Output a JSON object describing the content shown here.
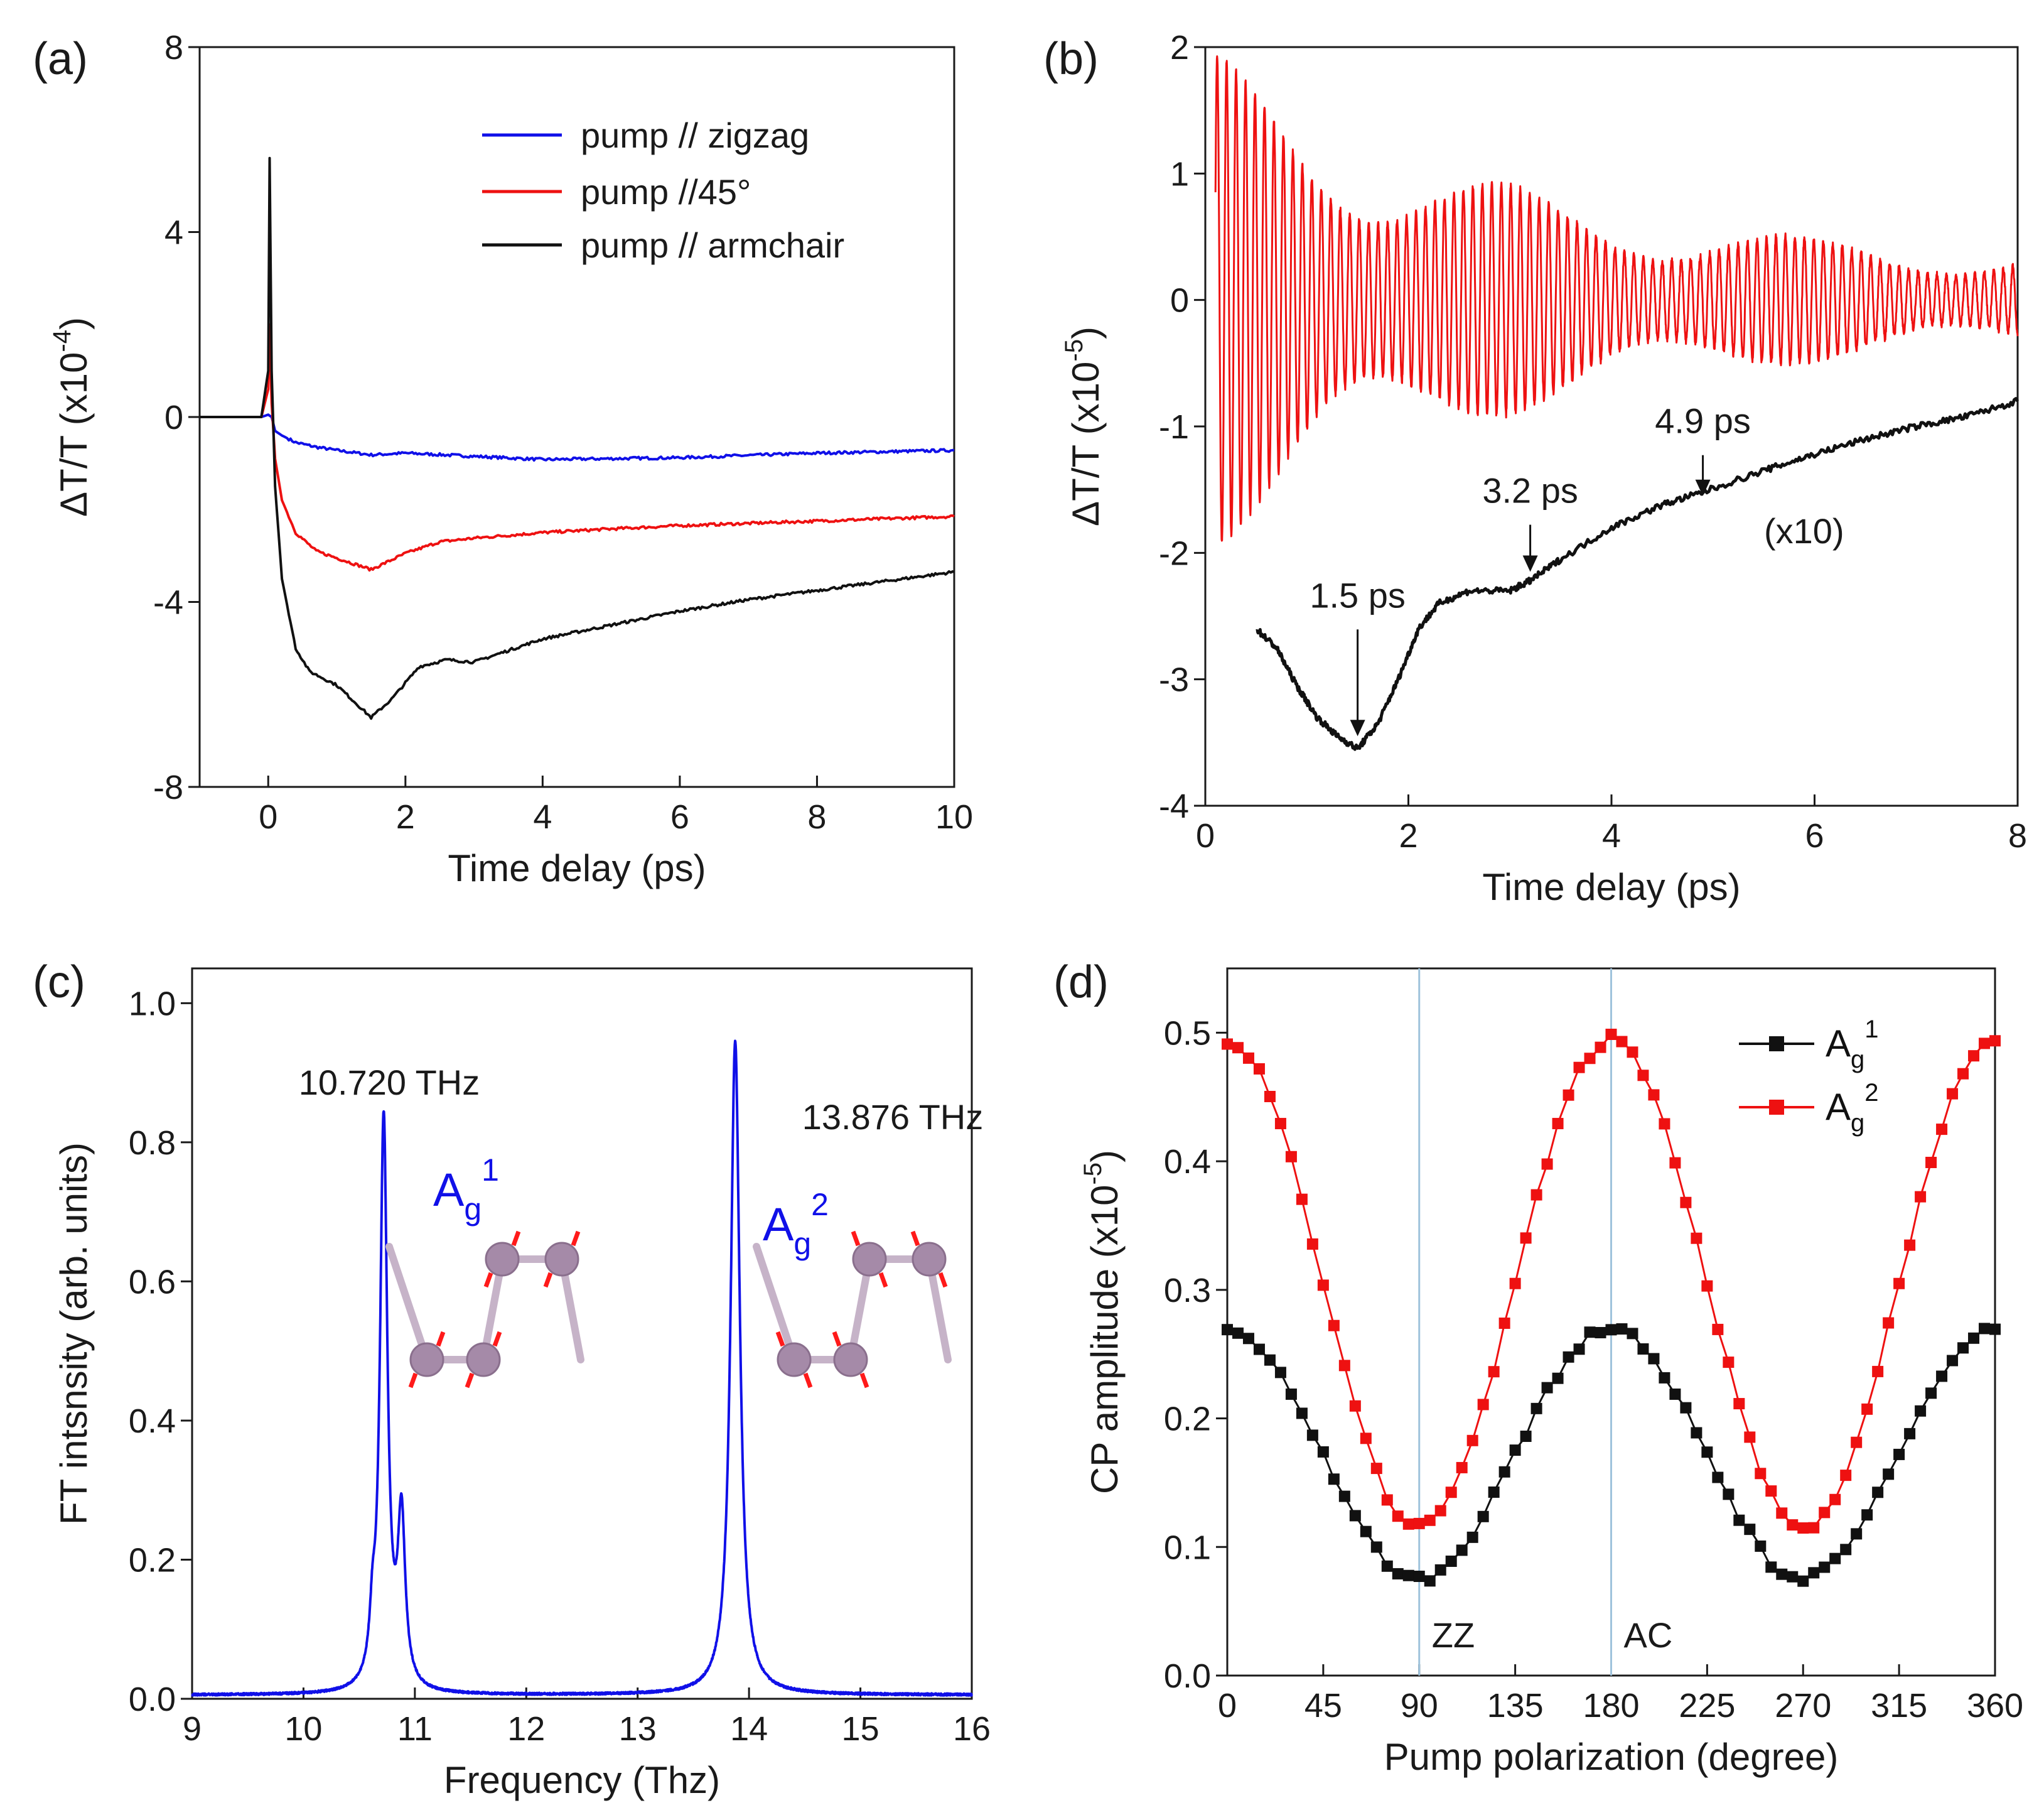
{
  "colors": {
    "blue": "#1010e8",
    "red": "#ee1111",
    "black": "#111111",
    "guide": "#9fc3dc",
    "guide_text": "#3c78c8",
    "molecule": "#a58aa8",
    "arrow": "#ff1a1a"
  },
  "chart_data": [
    {
      "panel": "(a)",
      "type": "line",
      "xlabel": "Time delay (ps)",
      "ylabel": "ΔT/T (x10",
      "ylabel_exp": "-4",
      "ylabel_close": ")",
      "xlim": [
        -1,
        10
      ],
      "ylim": [
        -8,
        8
      ],
      "xticks": [
        0,
        2,
        4,
        6,
        8,
        10
      ],
      "yticks": [
        -8,
        -4,
        0,
        4,
        8
      ],
      "legend_position": "top-right",
      "series": [
        {
          "name": "pump // zigzag",
          "color": "blue",
          "x": [
            -1,
            -0.5,
            -0.1,
            0,
            0.05,
            0.1,
            0.2,
            0.4,
            0.7,
            1,
            1.5,
            2,
            3,
            4,
            5,
            6,
            7,
            8,
            9,
            10
          ],
          "y": [
            0,
            0,
            0,
            0.05,
            0,
            -0.3,
            -0.4,
            -0.55,
            -0.65,
            -0.72,
            -0.82,
            -0.78,
            -0.85,
            -0.92,
            -0.9,
            -0.88,
            -0.83,
            -0.78,
            -0.75,
            -0.72
          ]
        },
        {
          "name": "pump //45°",
          "color": "red",
          "x": [
            -1,
            -0.5,
            -0.1,
            0,
            0.02,
            0.05,
            0.1,
            0.2,
            0.4,
            0.7,
            1,
            1.5,
            2,
            2.5,
            3,
            4,
            5,
            6,
            7,
            8,
            9,
            10
          ],
          "y": [
            0,
            0,
            0,
            0.6,
            2.0,
            0.3,
            -0.9,
            -1.8,
            -2.5,
            -2.9,
            -3.05,
            -3.3,
            -2.95,
            -2.7,
            -2.62,
            -2.5,
            -2.42,
            -2.35,
            -2.3,
            -2.25,
            -2.2,
            -2.15
          ]
        },
        {
          "name": "pump // armchair",
          "color": "black",
          "x": [
            -1,
            -0.5,
            -0.1,
            0,
            0.02,
            0.05,
            0.1,
            0.2,
            0.4,
            0.6,
            1,
            1.5,
            1.8,
            2.2,
            2.6,
            3,
            4,
            5,
            6,
            7,
            8,
            9,
            10
          ],
          "y": [
            0,
            0,
            0,
            1.0,
            5.6,
            1.0,
            -1.5,
            -3.5,
            -5.0,
            -5.5,
            -5.8,
            -6.5,
            -6.1,
            -5.4,
            -5.25,
            -5.3,
            -4.8,
            -4.5,
            -4.2,
            -3.95,
            -3.75,
            -3.55,
            -3.35
          ]
        }
      ]
    },
    {
      "panel": "(b)",
      "type": "line",
      "xlabel": "Time delay (ps)",
      "ylabel": "ΔT/T (x10",
      "ylabel_exp": "-5",
      "ylabel_close": ")",
      "xlim": [
        0,
        8
      ],
      "ylim": [
        -4,
        2
      ],
      "xticks": [
        0,
        2,
        4,
        6,
        8
      ],
      "yticks": [
        -4,
        -3,
        -2,
        -1,
        0,
        1,
        2
      ],
      "oscillation": {
        "color": "red",
        "x_start": 0.1,
        "x_end": 8,
        "frequency_thz": 10.72,
        "amplitude_start": 1.7,
        "amplitude_end": 0.22,
        "decay_ps": 3.0
      },
      "background": {
        "color": "black",
        "x": [
          0.5,
          0.7,
          0.9,
          1.1,
          1.3,
          1.5,
          1.7,
          1.9,
          2.1,
          2.3,
          2.6,
          3.0,
          3.2,
          3.5,
          4.0,
          4.5,
          4.9,
          5.5,
          6.0,
          6.5,
          7.0,
          7.5,
          8.0
        ],
        "y": [
          -2.6,
          -2.75,
          -3.05,
          -3.3,
          -3.45,
          -3.55,
          -3.35,
          -3.0,
          -2.6,
          -2.4,
          -2.3,
          -2.3,
          -2.22,
          -2.05,
          -1.8,
          -1.62,
          -1.52,
          -1.35,
          -1.22,
          -1.1,
          -1.0,
          -0.92,
          -0.8
        ]
      },
      "annotations": [
        {
          "text": "1.5 ps",
          "x": 1.5,
          "y": -3.45
        },
        {
          "text": "3.2 ps",
          "x": 3.2,
          "y": -2.15
        },
        {
          "text": "4.9 ps",
          "x": 4.9,
          "y": -1.55
        }
      ],
      "scale_note": "(x10)"
    },
    {
      "panel": "(c)",
      "type": "line",
      "xlabel": "Frequency (Thz)",
      "ylabel": "FT intsnsity (arb. units)",
      "xlim": [
        9,
        16
      ],
      "ylim": [
        0,
        1.05
      ],
      "xticks": [
        9,
        10,
        11,
        12,
        13,
        14,
        15,
        16
      ],
      "yticks": [
        0.0,
        0.2,
        0.4,
        0.6,
        0.8,
        1.0
      ],
      "series": [
        {
          "name": "FT spectrum",
          "color": "blue",
          "peaks": [
            {
              "center": 10.72,
              "height": 0.82,
              "width": 0.04
            },
            {
              "center": 10.88,
              "height": 0.24,
              "width": 0.04
            },
            {
              "center": 10.62,
              "height": 0.07,
              "width": 0.03
            },
            {
              "center": 13.876,
              "height": 0.94,
              "width": 0.05
            }
          ]
        }
      ],
      "peak_labels": [
        {
          "text": "10.720 THz",
          "mode_base": "A",
          "mode_sub": "g",
          "mode_sup": "1"
        },
        {
          "text": "13.876 THz",
          "mode_base": "A",
          "mode_sub": "g",
          "mode_sup": "2"
        }
      ]
    },
    {
      "panel": "(d)",
      "type": "scatter",
      "xlabel": "Pump polarization (degree)",
      "ylabel": "CP amplitude (x10",
      "ylabel_exp": "-5",
      "ylabel_close": ")",
      "xlim": [
        0,
        360
      ],
      "ylim": [
        0,
        0.55
      ],
      "xticks": [
        0,
        45,
        90,
        135,
        180,
        225,
        270,
        315,
        360
      ],
      "yticks": [
        0.0,
        0.1,
        0.2,
        0.3,
        0.4,
        0.5
      ],
      "guides": [
        {
          "x": 90,
          "label": "ZZ"
        },
        {
          "x": 180,
          "label": "AC"
        }
      ],
      "legend_position": "top-right",
      "series": [
        {
          "name_base": "A",
          "name_sub": "g",
          "name_sup": "1",
          "color": "black",
          "min": 0.075,
          "max": 0.27,
          "step_deg": 5
        },
        {
          "name_base": "A",
          "name_sub": "g",
          "name_sup": "2",
          "color": "red",
          "min": 0.115,
          "max": 0.495,
          "step_deg": 5
        }
      ]
    }
  ]
}
